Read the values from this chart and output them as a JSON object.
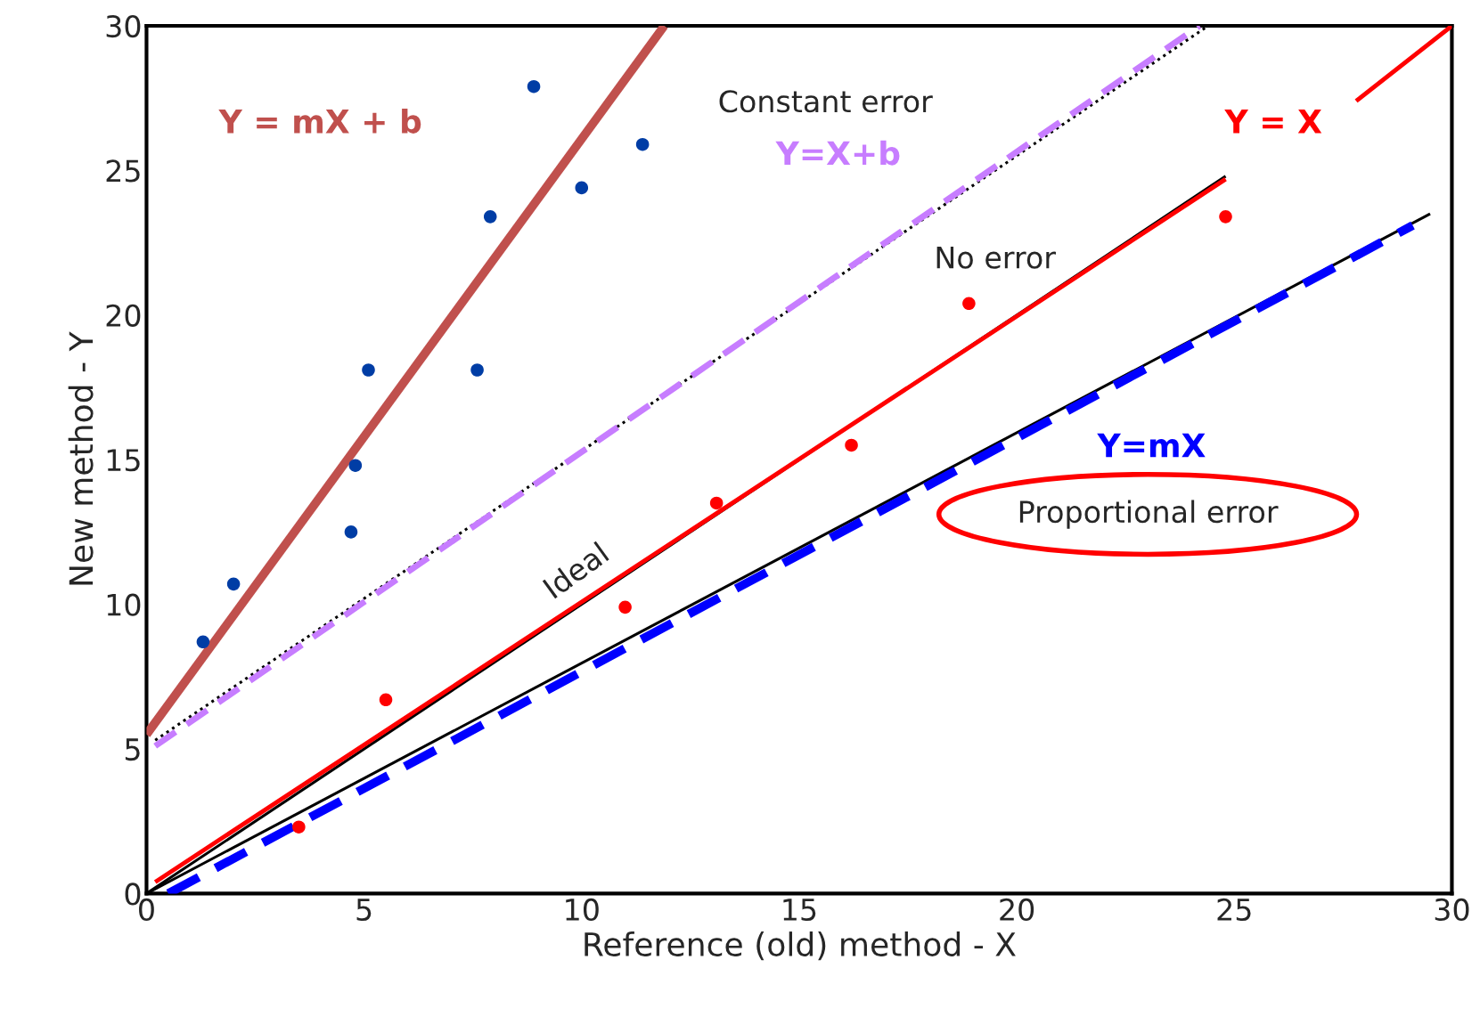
{
  "chart_data": {
    "type": "line",
    "xlabel": "Reference (old) method - X",
    "ylabel": "New method - Y",
    "xlim": [
      0,
      30
    ],
    "ylim": [
      0,
      30
    ],
    "xticks": [
      0,
      5,
      10,
      15,
      20,
      25,
      30
    ],
    "yticks": [
      0,
      5,
      10,
      15,
      20,
      25,
      30
    ],
    "grid": false,
    "series": [
      {
        "type": "scatter",
        "marker": "circle",
        "color": "#003da5",
        "x": [
          1.3,
          2.0,
          4.7,
          4.8,
          5.1,
          7.6,
          7.9,
          8.9,
          10.0,
          11.4
        ],
        "values": [
          8.7,
          10.7,
          12.5,
          14.8,
          18.1,
          18.1,
          23.4,
          27.9,
          24.4,
          25.9
        ]
      },
      {
        "type": "scatter",
        "marker": "circle",
        "color": "#ff0000",
        "x": [
          3.5,
          5.5,
          11.0,
          13.1,
          16.2,
          18.9,
          24.8
        ],
        "values": [
          2.3,
          6.7,
          9.9,
          13.5,
          15.5,
          20.4,
          23.4
        ]
      },
      {
        "name": "Y = mX + b",
        "color": "#c0504d",
        "line_style": "solid",
        "x": [
          0,
          11.9
        ],
        "values": [
          5.5,
          30
        ]
      },
      {
        "color": "#000000",
        "line_style": "dotted",
        "x": [
          0.2,
          24.4
        ],
        "values": [
          5.3,
          30
        ]
      },
      {
        "name": "Y=X+b",
        "color": "#c77dff",
        "line_style": "dashed",
        "x": [
          0.2,
          24.2
        ],
        "values": [
          5.1,
          30
        ]
      },
      {
        "color": "#000000",
        "line_style": "solid",
        "x": [
          0,
          24.8
        ],
        "values": [
          0,
          24.8
        ]
      },
      {
        "name": "Y = X",
        "color": "#ff0000",
        "line_style": "solid",
        "x": [
          0.2,
          24.8,
          26.0,
          27.8,
          30
        ],
        "values": [
          0.4,
          24.7,
          null,
          27.4,
          30
        ]
      },
      {
        "color": "#000000",
        "line_style": "solid",
        "x": [
          0,
          29.5
        ],
        "values": [
          0,
          23.5
        ]
      },
      {
        "name": "Y=mX",
        "color": "#0000ff",
        "line_style": "dashed",
        "x": [
          0.5,
          29.1
        ],
        "values": [
          0,
          23.1
        ]
      }
    ],
    "annotations": [
      "Constant error",
      "No error",
      "Ideal",
      "Proportional error"
    ]
  }
}
